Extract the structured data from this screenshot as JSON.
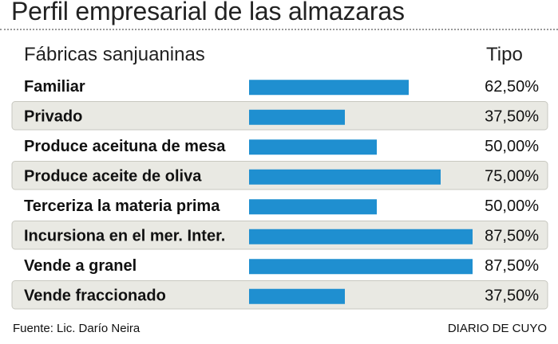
{
  "header": {
    "title": "Perfil empresarial de las almazaras",
    "column_left": "Fábricas sanjuaninas",
    "column_right": "Tipo"
  },
  "footer": {
    "source": "Fuente: Lic. Darío Neira",
    "brand": "DIARIO DE CUYO"
  },
  "colors": {
    "bar": "#1f8fd0",
    "row_shade": "#e9e9e3"
  },
  "chart_data": {
    "type": "bar",
    "orientation": "horizontal",
    "categories": [
      "Familiar",
      "Privado",
      "Produce aceituna de mesa",
      "Produce aceite de oliva",
      "Terceriza la materia prima",
      "Incursiona en el mer. Inter.",
      "Vende a granel",
      "Vende fraccionado"
    ],
    "values": [
      62.5,
      37.5,
      50.0,
      75.0,
      50.0,
      87.5,
      87.5,
      37.5
    ],
    "value_labels": [
      "62,50%",
      "37,50%",
      "50,00%",
      "75,00%",
      "50,00%",
      "87,50%",
      "87,50%",
      "37,50%"
    ],
    "xlim": [
      0,
      87.5
    ],
    "title": "Perfil empresarial de las almazaras",
    "xlabel": "",
    "ylabel": "",
    "grid": false,
    "legend": "none"
  }
}
